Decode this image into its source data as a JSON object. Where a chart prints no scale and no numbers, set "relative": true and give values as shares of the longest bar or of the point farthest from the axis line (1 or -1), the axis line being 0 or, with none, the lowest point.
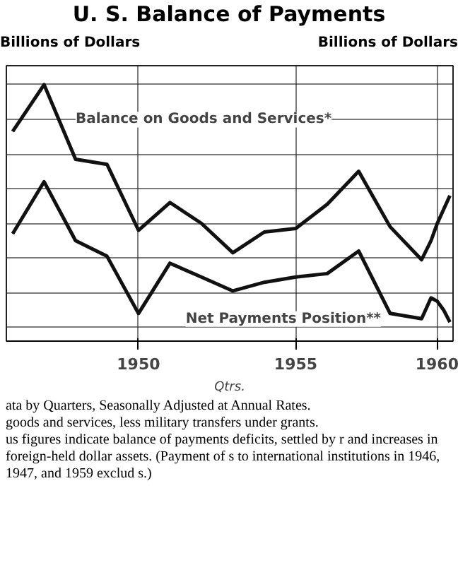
{
  "chart_data": {
    "type": "line",
    "relative": true,
    "title": "U. S. Balance of Payments",
    "ylabel": "Billions of Dollars",
    "y2label": "Billions of Dollars",
    "xlabel": "Qtrs.",
    "xlim": [
      1945.8,
      1960.0
    ],
    "xticks": [
      1950,
      1955,
      {
        "value": 1959.5,
        "label": "1960"
      }
    ],
    "grid": true,
    "legend": false,
    "line_style": "solid",
    "marker": "none",
    "series": [
      {
        "name": "Balance on Goods and Services*",
        "color": "#111111",
        "x": [
          1946,
          1947,
          1948,
          1949,
          1950,
          1951,
          1952,
          1953,
          1954,
          1955,
          1956,
          1957,
          1958,
          1959,
          1959.3,
          1959.5,
          1959.7,
          1959.9
        ],
        "values": [
          0.73,
          1.0,
          0.57,
          0.54,
          0.16,
          0.32,
          0.2,
          0.03,
          0.15,
          0.17,
          0.31,
          0.5,
          0.18,
          -0.01,
          0.1,
          0.2,
          0.28,
          0.36
        ]
      },
      {
        "name": "Net Payments Position**",
        "color": "#111111",
        "x": [
          1946,
          1947,
          1948,
          1949,
          1950,
          1951,
          1952,
          1953,
          1954,
          1955,
          1956,
          1957,
          1958,
          1959,
          1959.3,
          1959.5,
          1959.7,
          1959.9
        ],
        "values": [
          0.14,
          0.44,
          0.1,
          0.01,
          -0.32,
          -0.03,
          -0.11,
          -0.19,
          -0.14,
          -0.11,
          -0.09,
          0.04,
          -0.32,
          -0.35,
          -0.23,
          -0.25,
          -0.3,
          -0.37
        ]
      }
    ],
    "annotations": [
      "ata by Quarters, Seasonally Adjusted at Annual Rates.",
      "goods and services, less military transfers under grants.",
      "us figures indicate balance of payments deficits, settled by r and increases in foreign-held dollar assets. (Payment of s to international institutions in 1946, 1947, and 1959 exclud s.)"
    ]
  }
}
